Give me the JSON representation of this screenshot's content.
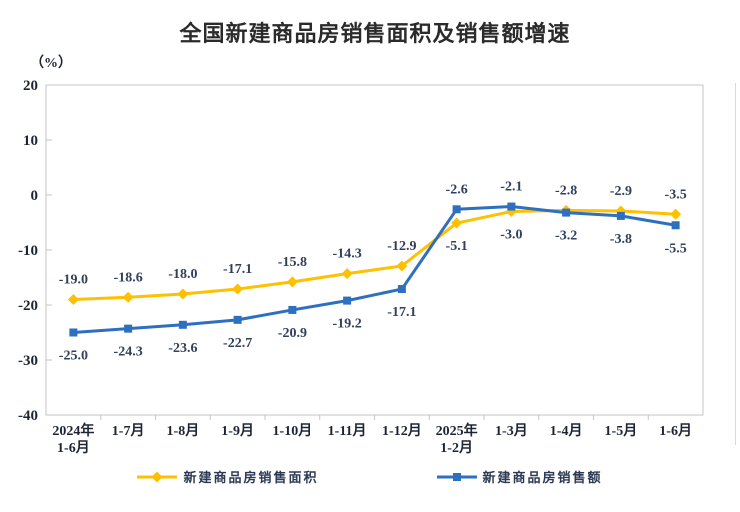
{
  "chart_data": {
    "type": "line",
    "title": "全国新建商品房销售面积及销售额增速",
    "unit_label": "（%）",
    "categories": [
      "2024年\n1-6月",
      "1-7月",
      "1-8月",
      "1-9月",
      "1-10月",
      "1-11月",
      "1-12月",
      "2025年\n1-2月",
      "1-3月",
      "1-4月",
      "1-5月",
      "1-6月"
    ],
    "y_axis": {
      "min": -40,
      "max": 20,
      "step": 10,
      "tick_labels": [
        "20",
        "10",
        "0",
        "-10",
        "-20",
        "-30",
        "-40"
      ]
    },
    "grid": false,
    "legend_position": "bottom",
    "axis_color": "#c6c6c6",
    "data_label_color": "#31405c",
    "series": [
      {
        "name": "新建商品房销售面积",
        "color": "#FFC000",
        "marker": "diamond",
        "values": [
          -19.0,
          -18.6,
          -18.0,
          -17.1,
          -15.8,
          -14.3,
          -12.9,
          -5.1,
          -3.0,
          -2.8,
          -2.9,
          -3.5
        ]
      },
      {
        "name": "新建商品房销售额",
        "color": "#2E6FC0",
        "marker": "square",
        "values": [
          -25.0,
          -24.3,
          -23.6,
          -22.7,
          -20.9,
          -19.2,
          -17.1,
          -2.6,
          -2.1,
          -3.2,
          -3.8,
          -5.5
        ]
      }
    ]
  }
}
